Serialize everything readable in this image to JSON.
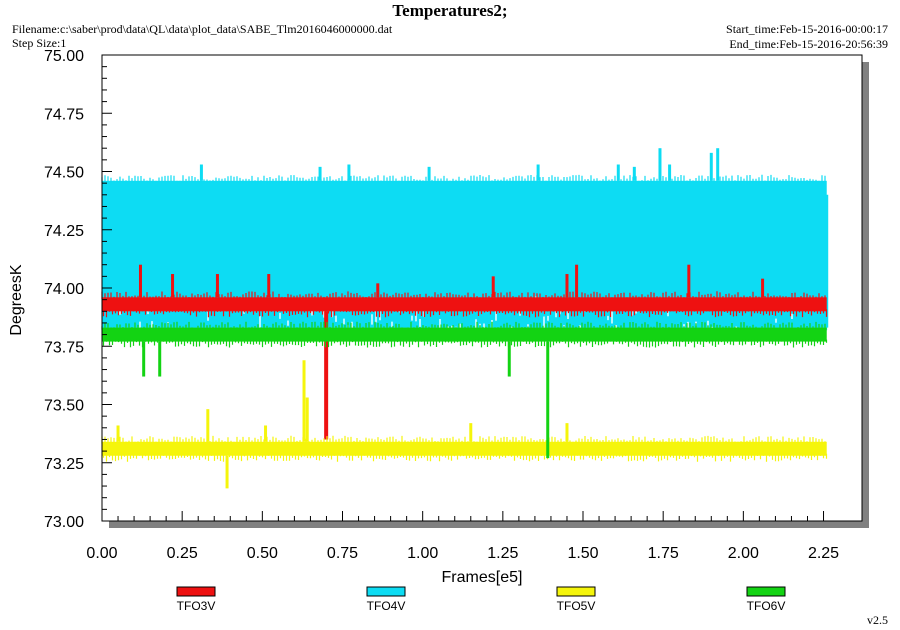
{
  "header": {
    "title": "Temperatures2;",
    "filename": "Filename:c:\\saber\\prod\\data\\QL\\data\\plot_data\\SABE_Tlm2016046000000.dat",
    "step_size": "Step Size:1",
    "start_time": "Start_time:Feb-15-2016-00:00:17",
    "end_time": "End_time:Feb-15-2016-20:56:39"
  },
  "footer": {
    "version": "v2.5"
  },
  "chart_data": {
    "type": "line",
    "title": "Temperatures2;",
    "xlabel": "Frames[e5]",
    "ylabel": "DegreesK",
    "xlim": [
      0.0,
      2.37
    ],
    "ylim": [
      73.0,
      75.0
    ],
    "xticks": [
      "0.00",
      "0.25",
      "0.50",
      "0.75",
      "1.00",
      "1.25",
      "1.50",
      "1.75",
      "2.00",
      "2.25"
    ],
    "yticks": [
      "73.00",
      "73.25",
      "73.50",
      "73.75",
      "74.00",
      "74.25",
      "74.50",
      "74.75",
      "75.00"
    ],
    "grid": false,
    "legend_placement": "bottom",
    "series": [
      {
        "name": "TFO3V",
        "color": "#ee1111",
        "band": [
          73.9,
          73.96
        ],
        "spikes": [
          [
            0.12,
            74.1
          ],
          [
            0.22,
            74.06
          ],
          [
            0.36,
            74.06
          ],
          [
            0.52,
            74.06
          ],
          [
            0.699,
            73.35
          ],
          [
            0.86,
            74.02
          ],
          [
            1.22,
            74.05
          ],
          [
            1.45,
            74.06
          ],
          [
            1.48,
            74.1
          ],
          [
            1.83,
            74.1
          ],
          [
            2.06,
            74.04
          ]
        ]
      },
      {
        "name": "TFO4V",
        "color": "#0ddcf3",
        "band": [
          73.83,
          74.46
        ],
        "spikes": [
          [
            0.31,
            74.53
          ],
          [
            0.68,
            74.52
          ],
          [
            0.77,
            74.53
          ],
          [
            1.02,
            74.52
          ],
          [
            1.36,
            74.53
          ],
          [
            1.61,
            74.53
          ],
          [
            1.66,
            74.52
          ],
          [
            1.74,
            74.6
          ],
          [
            1.77,
            74.53
          ],
          [
            1.9,
            74.58
          ],
          [
            1.92,
            74.6
          ],
          [
            2.26,
            74.4
          ]
        ]
      },
      {
        "name": "TFO5V",
        "color": "#f5f50b",
        "band": [
          73.28,
          73.34
        ],
        "spikes": [
          [
            0.05,
            73.41
          ],
          [
            0.33,
            73.48
          ],
          [
            0.39,
            73.14
          ],
          [
            0.51,
            73.41
          ],
          [
            0.63,
            73.69
          ],
          [
            0.64,
            73.53
          ],
          [
            1.15,
            73.42
          ],
          [
            1.45,
            73.42
          ],
          [
            1.4,
            73.28
          ]
        ]
      },
      {
        "name": "TFO6V",
        "color": "#13d313",
        "band": [
          73.77,
          73.83
        ],
        "spikes": [
          [
            0.13,
            73.62
          ],
          [
            0.18,
            73.62
          ],
          [
            1.27,
            73.62
          ],
          [
            1.39,
            73.27
          ],
          [
            1.64,
            73.78
          ]
        ]
      }
    ]
  }
}
